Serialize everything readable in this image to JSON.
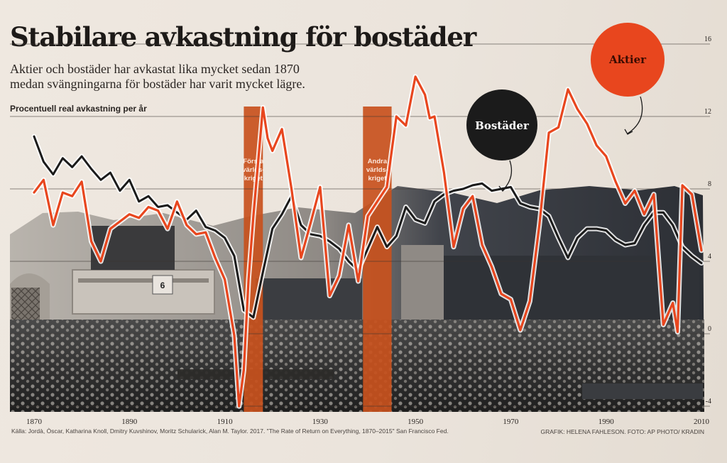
{
  "header": {
    "title": "Stabilare avkastning för bostäder",
    "subtitle_line1": "Aktier och bostäder har avkastat lika mycket sedan 1870",
    "subtitle_line2": "medan svängningarna för bostäder har varit mycket lägre.",
    "ylabel": "Procentuell real avkastning per år"
  },
  "footer": {
    "source": "Källa: Jordà, Òscar, Katharina Knoll, Dmitry Kuvshinov, Moritz Schularick, Alan M. Taylor. 2017. \"The Rate of Return on Everything, 1870–2015\" San Francisco Fed.",
    "credit": "GRAFIK: HELENA FAHLESON. FOTO: AP PHOTO/ KRADIN"
  },
  "colors": {
    "aktier": "#e8461e",
    "bostader": "#1b1b1b",
    "war_band": "#c8511d",
    "photo_dark": "#2a2c31"
  },
  "war_bands": [
    {
      "label_lines": [
        "Första",
        "världs-",
        "kriget"
      ],
      "x_start": 1914,
      "x_end": 1918
    },
    {
      "label_lines": [
        "Andra",
        "världs-",
        "kriget"
      ],
      "x_start": 1939,
      "x_end": 1945
    }
  ],
  "chart_data": {
    "type": "line",
    "title": "",
    "xlabel": "",
    "ylabel": "Procentuell real avkastning per år",
    "xlim": [
      1870,
      2010
    ],
    "ylim": [
      -4,
      16
    ],
    "xticks": [
      "1870",
      "1890",
      "1910",
      "1930",
      "1950",
      "1970",
      "1990",
      "2010"
    ],
    "yticks": [
      "-4",
      "0",
      "4",
      "8",
      "12",
      "16"
    ],
    "grid": true,
    "series": [
      {
        "name": "Bostäder",
        "x": [
          1870,
          1872,
          1874,
          1876,
          1878,
          1880,
          1882,
          1884,
          1886,
          1888,
          1890,
          1892,
          1894,
          1896,
          1898,
          1900,
          1902,
          1904,
          1906,
          1908,
          1910,
          1912,
          1914,
          1916,
          1918,
          1920,
          1922,
          1924,
          1926,
          1928,
          1930,
          1932,
          1934,
          1936,
          1938,
          1940,
          1942,
          1944,
          1946,
          1948,
          1950,
          1952,
          1954,
          1956,
          1958,
          1960,
          1962,
          1964,
          1966,
          1968,
          1970,
          1972,
          1974,
          1976,
          1978,
          1980,
          1982,
          1984,
          1986,
          1988,
          1990,
          1992,
          1994,
          1996,
          1998,
          2000,
          2002,
          2004,
          2006,
          2008,
          2010
        ],
        "values": [
          10.9,
          9.5,
          8.8,
          9.7,
          9.2,
          9.8,
          9.1,
          8.5,
          8.9,
          7.9,
          8.5,
          7.3,
          7.6,
          7.0,
          7.1,
          6.7,
          6.3,
          6.8,
          5.9,
          5.7,
          5.3,
          4.3,
          1.3,
          0.9,
          3.4,
          5.8,
          6.6,
          7.6,
          6.0,
          5.5,
          5.4,
          5.1,
          4.7,
          4.0,
          3.5,
          4.7,
          5.9,
          4.8,
          5.4,
          7.0,
          6.3,
          6.1,
          7.3,
          7.7,
          7.9,
          8.0,
          8.2,
          8.3,
          7.9,
          8.0,
          8.1,
          7.2,
          7.0,
          6.9,
          6.5,
          5.3,
          4.2,
          5.3,
          5.8,
          5.8,
          5.7,
          5.2,
          4.9,
          5.0,
          6.0,
          6.7,
          6.7,
          6.0,
          4.8,
          4.3,
          3.9
        ]
      },
      {
        "name": "Aktier",
        "x": [
          1870,
          1872,
          1874,
          1876,
          1878,
          1880,
          1882,
          1884,
          1886,
          1888,
          1890,
          1892,
          1894,
          1896,
          1898,
          1900,
          1902,
          1904,
          1906,
          1908,
          1910,
          1912,
          1913,
          1914,
          1915,
          1916,
          1918,
          1919,
          1920,
          1922,
          1924,
          1926,
          1928,
          1930,
          1932,
          1934,
          1936,
          1938,
          1940,
          1942,
          1944,
          1946,
          1948,
          1950,
          1952,
          1953,
          1954,
          1956,
          1958,
          1960,
          1962,
          1964,
          1966,
          1968,
          1970,
          1972,
          1974,
          1976,
          1978,
          1980,
          1982,
          1984,
          1986,
          1988,
          1990,
          1992,
          1994,
          1996,
          1998,
          2000,
          2002,
          2004,
          2005,
          2006,
          2008,
          2010
        ],
        "values": [
          7.8,
          8.5,
          6.0,
          7.8,
          7.6,
          8.4,
          5.1,
          4.0,
          5.8,
          6.2,
          6.6,
          6.4,
          7.0,
          6.8,
          5.8,
          7.3,
          6.0,
          5.5,
          5.6,
          4.2,
          3.0,
          -0.1,
          -4.0,
          -2.0,
          3.0,
          6.5,
          12.5,
          10.8,
          10.1,
          11.3,
          8.0,
          4.2,
          6.1,
          8.1,
          2.1,
          3.2,
          6.0,
          2.9,
          6.5,
          7.3,
          8.1,
          12.0,
          11.5,
          14.2,
          13.2,
          11.9,
          12.0,
          8.9,
          4.8,
          6.9,
          7.6,
          4.9,
          3.7,
          2.2,
          1.9,
          0.2,
          1.8,
          6.0,
          11.1,
          11.4,
          13.5,
          12.4,
          11.6,
          10.4,
          9.8,
          8.4,
          7.2,
          7.9,
          6.6,
          7.7,
          0.5,
          1.7,
          0.1,
          8.2,
          7.7,
          4.6
        ]
      }
    ],
    "annotations": [
      {
        "text": "Bostäder",
        "points_to": "Bostäder"
      },
      {
        "text": "Aktier",
        "points_to": "Aktier"
      }
    ]
  }
}
